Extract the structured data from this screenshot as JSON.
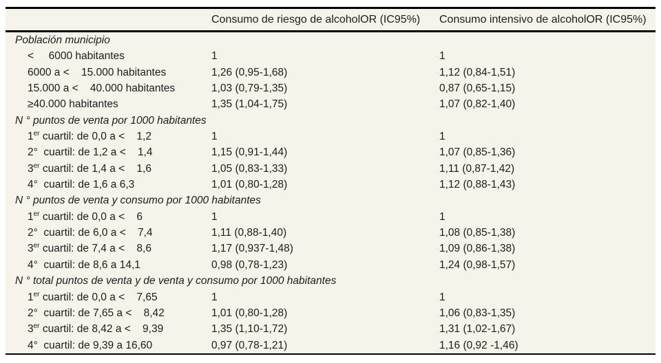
{
  "colors": {
    "table_background": "#f6f3ea",
    "rule": "#000000",
    "text": "#1c1c1c"
  },
  "header": {
    "col1": "",
    "col2": "Consumo de riesgo de alcoholOR (IC95%)",
    "col3": "Consumo intensivo de alcoholOR (IC95%)"
  },
  "sections": [
    {
      "title": "Población municipio",
      "rows": [
        {
          "pre": "",
          "sup": "",
          "rest": "<     6000 habitantes",
          "or_risk": "1",
          "or_intensive": "1"
        },
        {
          "pre": "",
          "sup": "",
          "rest": "6000 a <    15.000 habitantes",
          "or_risk": "1,26 (0,95-1,68)",
          "or_intensive": "1,12 (0,84-1,51)"
        },
        {
          "pre": "",
          "sup": "",
          "rest": "15.000 a <    40.000 habitantes",
          "or_risk": "1,03 (0,79-1,35)",
          "or_intensive": "0,87 (0,65-1,15)"
        },
        {
          "pre": "",
          "sup": "",
          "rest": "≥40.000 habitantes",
          "or_risk": "1,35 (1,04-1,75)",
          "or_intensive": "1,07 (0,82-1,40)"
        }
      ]
    },
    {
      "title": "N ° puntos de venta por 1000 habitantes",
      "rows": [
        {
          "pre": "1",
          "sup": "er",
          "rest": " cuartil: de 0,0 a <    1,2",
          "or_risk": "1",
          "or_intensive": "1"
        },
        {
          "pre": "2",
          "sup": "",
          "rest": "°  cuartil: de 1,2 a <    1,4",
          "or_risk": "1,15 (0,91-1,44)",
          "or_intensive": "1,07 (0,85-1,36)"
        },
        {
          "pre": "3",
          "sup": "er",
          "rest": " cuartil: de 1,4 a <    1,6",
          "or_risk": "1,05 (0,83-1,33)",
          "or_intensive": "1,11 (0,87-1,42)"
        },
        {
          "pre": "4",
          "sup": "",
          "rest": "°  cuartil: de 1,6 a 6,3",
          "or_risk": "1,01 (0,80-1,28)",
          "or_intensive": "1,12 (0,88-1,43)"
        }
      ]
    },
    {
      "title": "N ° puntos de venta y consumo por 1000 habitantes",
      "rows": [
        {
          "pre": "1",
          "sup": "er",
          "rest": " cuartil: de 0,0 a <    6",
          "or_risk": "1",
          "or_intensive": "1"
        },
        {
          "pre": "2",
          "sup": "",
          "rest": "°  cuartil: de 6,0 a <    7,4",
          "or_risk": "1,11 (0,88-1,40)",
          "or_intensive": "1,08 (0,85-1,38)"
        },
        {
          "pre": "3",
          "sup": "er",
          "rest": " cuartil: de 7,4 a <    8,6",
          "or_risk": "1,17 (0,937-1,48)",
          "or_intensive": "1,09 (0,86-1,38)"
        },
        {
          "pre": "4",
          "sup": "",
          "rest": "°  cuartil: de 8,6 a 14,1",
          "or_risk": "0,98 (0,78-1,23)",
          "or_intensive": "1,24 (0,98-1,57)"
        }
      ]
    },
    {
      "title": "N ° total puntos de venta y de venta y consumo por 1000 habitantes",
      "rows": [
        {
          "pre": "1",
          "sup": "er",
          "rest": " cuartil: de 0,0 a <    7,65",
          "or_risk": "1",
          "or_intensive": "1"
        },
        {
          "pre": "2",
          "sup": "",
          "rest": "°  cuartil: de 7,65 a <    8,42",
          "or_risk": "1,01 (0,80-1,28)",
          "or_intensive": "1,06 (0,83-1,35)"
        },
        {
          "pre": "3",
          "sup": "er",
          "rest": " cuartil: de 8,42 a <    9,39",
          "or_risk": "1,35 (1,10-1,72)",
          "or_intensive": "1,31 (1,02-1,67)"
        },
        {
          "pre": "4",
          "sup": "",
          "rest": "°  cuartil: de 9,39 a 16,60",
          "or_risk": "0,97 (0,78-1,21)",
          "or_intensive": "1,16 (0,92 -1,46)"
        }
      ]
    }
  ]
}
